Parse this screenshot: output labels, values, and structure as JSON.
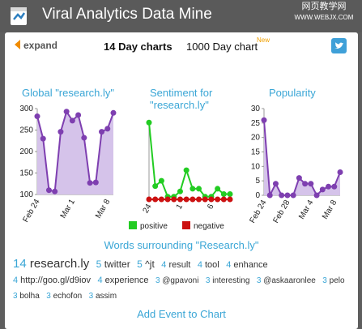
{
  "header": {
    "title": "Viral Analytics Data Mine",
    "watermark_main": "网页教学网",
    "watermark_sub": "WWW.WEBJX.COM"
  },
  "toolbar": {
    "expand_label": "expand",
    "tab_14": "14 Day charts",
    "tab_1000": "1000 Day chart",
    "new_badge": "New"
  },
  "chart_data": [
    {
      "type": "area",
      "title": "Global \"research.ly\"",
      "ylim": [
        100,
        300
      ],
      "yticks": [
        100,
        150,
        200,
        250,
        300
      ],
      "x_tick_labels": [
        "Feb 24",
        "Mar 1",
        "Mar 8"
      ],
      "series": [
        {
          "values": [
            282,
            230,
            110,
            107,
            246,
            293,
            272,
            285,
            232,
            127,
            128,
            246,
            253,
            290
          ],
          "color": "#7e3fb0"
        }
      ]
    },
    {
      "type": "line",
      "title": "Sentiment for \"research.ly\"",
      "ylim": [
        0,
        30
      ],
      "x_tick_labels": [
        "24",
        "1",
        "6"
      ],
      "series": [
        {
          "name": "positive",
          "color": "#22cc22",
          "values": [
            29,
            5,
            7,
            1,
            1,
            3,
            11,
            4,
            4,
            1,
            1,
            4,
            2,
            2
          ]
        },
        {
          "name": "negative",
          "color": "#cc1111",
          "values": [
            0,
            0,
            0,
            0,
            0,
            0,
            0,
            0,
            0,
            0,
            0,
            0,
            0,
            0
          ]
        }
      ]
    },
    {
      "type": "area",
      "title": "Popularity",
      "ylim": [
        0,
        30
      ],
      "yticks": [
        0,
        5,
        10,
        15,
        20,
        25,
        30
      ],
      "x_tick_labels": [
        "Feb 24",
        "Feb 28",
        "Mar 4",
        "Mar 8"
      ],
      "series": [
        {
          "values": [
            26,
            0,
            4,
            0,
            0,
            0,
            6,
            4,
            4,
            0,
            2,
            3,
            3,
            8
          ],
          "color": "#7e3fb0"
        }
      ]
    }
  ],
  "words": {
    "title": "Words surrounding \"Research.ly\"",
    "items": [
      {
        "count": "14",
        "word": "research.ly",
        "size": 15
      },
      {
        "count": "5",
        "word": "twitter",
        "size": 12
      },
      {
        "count": "5",
        "word": "^jt",
        "size": 12
      },
      {
        "count": "4",
        "word": "result",
        "size": 11
      },
      {
        "count": "4",
        "word": "tool",
        "size": 11
      },
      {
        "count": "4",
        "word": "enhance",
        "size": 11
      },
      {
        "count": "4",
        "word": "http://goo.gl/d9iov",
        "size": 11
      },
      {
        "count": "4",
        "word": "experience",
        "size": 11
      },
      {
        "count": "3",
        "word": "@gpavoni",
        "size": 10
      },
      {
        "count": "3",
        "word": "interesting",
        "size": 10
      },
      {
        "count": "3",
        "word": "@askaaronlee",
        "size": 10
      },
      {
        "count": "3",
        "word": "pelo",
        "size": 10
      },
      {
        "count": "3",
        "word": "bolha",
        "size": 10
      },
      {
        "count": "3",
        "word": "echofon",
        "size": 10
      },
      {
        "count": "3",
        "word": "assim",
        "size": 10
      }
    ]
  },
  "footer": {
    "add_event_label": "Add Event to Chart"
  },
  "icons": {
    "logo": "logo-icon",
    "expand": "arrow-left-icon",
    "twitter": "twitter-icon"
  }
}
